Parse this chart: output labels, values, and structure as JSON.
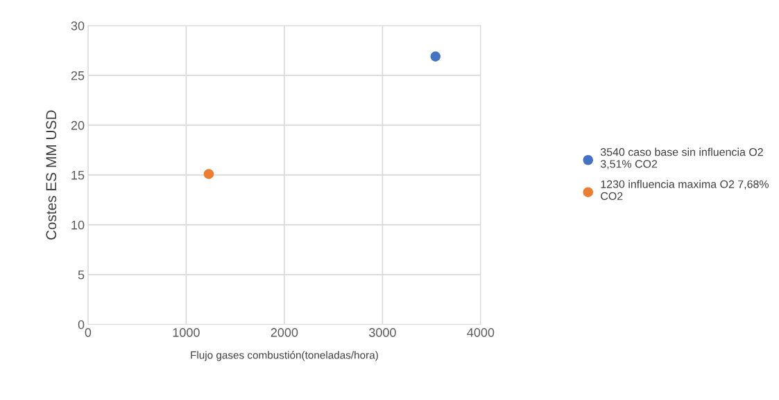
{
  "chart_data": {
    "type": "scatter",
    "xlabel": "Flujo gases combustión(toneladas/hora)",
    "ylabel": "Costes ES MM USD",
    "series": [
      {
        "name": "3540 caso base sin influencia O2 3,51% CO2",
        "color": "#4472c4",
        "x": [
          3540
        ],
        "values": [
          26.9
        ]
      },
      {
        "name": "1230 influencia maxima O2 7,68% CO2",
        "color": "#ed7d31",
        "x": [
          1230
        ],
        "values": [
          15.1
        ]
      }
    ],
    "xlim": [
      0,
      4000
    ],
    "xticks": [
      0,
      1000,
      2000,
      3000,
      4000
    ],
    "ylim": [
      0,
      30
    ],
    "yticks": [
      0,
      5,
      10,
      15,
      20,
      25,
      30
    ],
    "grid": true,
    "legend": "right",
    "marker": "circle"
  }
}
